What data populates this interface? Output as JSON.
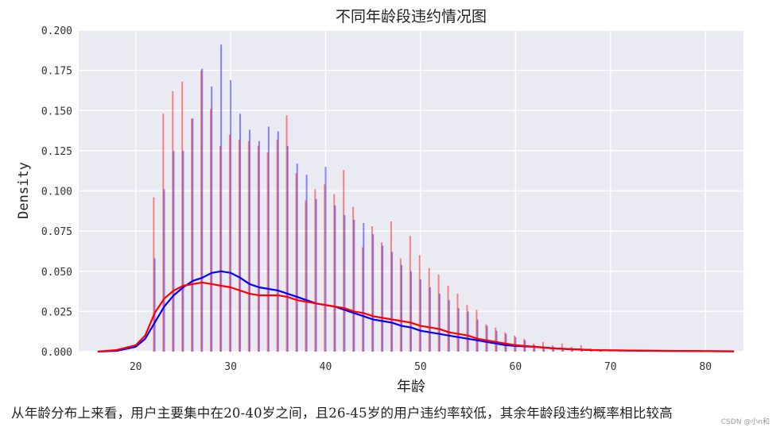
{
  "chart_data": {
    "type": "histogram_kde",
    "title": "不同年龄段违约情况图",
    "xlabel": "年龄",
    "ylabel": "Density",
    "xlim": [
      14,
      84
    ],
    "ylim": [
      0,
      0.2
    ],
    "xticks": [
      20,
      30,
      40,
      50,
      60,
      70,
      80
    ],
    "yticks": [
      0.0,
      0.025,
      0.05,
      0.075,
      0.1,
      0.125,
      0.15,
      0.175,
      0.2
    ],
    "ytick_labels": [
      "0.000",
      "0.025",
      "0.050",
      "0.075",
      "0.100",
      "0.125",
      "0.150",
      "0.175",
      "0.200"
    ],
    "grid": true,
    "series": [
      {
        "name": "blue",
        "color": "#0000ff",
        "hist_x": [
          22,
          23,
          24,
          25,
          26,
          27,
          28,
          29,
          30,
          31,
          32,
          33,
          34,
          35,
          36,
          37,
          38,
          39,
          40,
          41,
          42,
          43,
          44,
          45,
          46,
          47,
          48,
          49,
          50,
          51,
          52,
          53,
          54,
          55,
          56,
          57,
          58,
          59,
          60,
          61,
          62,
          63,
          64,
          65,
          66,
          67,
          68,
          69,
          70,
          71,
          72
        ],
        "hist_y": [
          0.058,
          0.101,
          0.125,
          0.125,
          0.145,
          0.176,
          0.165,
          0.191,
          0.169,
          0.148,
          0.138,
          0.131,
          0.14,
          0.137,
          0.128,
          0.117,
          0.11,
          0.095,
          0.115,
          0.091,
          0.085,
          0.082,
          0.08,
          0.073,
          0.066,
          0.062,
          0.054,
          0.05,
          0.045,
          0.04,
          0.036,
          0.032,
          0.027,
          0.025,
          0.02,
          0.016,
          0.013,
          0.011,
          0.009,
          0.007,
          0.004,
          0.003,
          0.003,
          0.002,
          0.002,
          0.001,
          0.001,
          0.001,
          0.001,
          0.001,
          0.001
        ],
        "kde_x": [
          16,
          18,
          20,
          21,
          22,
          23,
          24,
          25,
          26,
          27,
          28,
          29,
          30,
          31,
          32,
          33,
          34,
          35,
          36,
          37,
          38,
          39,
          40,
          41,
          42,
          43,
          44,
          45,
          46,
          47,
          48,
          49,
          50,
          51,
          52,
          53,
          54,
          55,
          56,
          57,
          58,
          59,
          60,
          62,
          64,
          66,
          68,
          70,
          75,
          80,
          83
        ],
        "kde_y": [
          0.0,
          0.0005,
          0.003,
          0.008,
          0.018,
          0.028,
          0.035,
          0.04,
          0.044,
          0.046,
          0.049,
          0.05,
          0.049,
          0.046,
          0.042,
          0.04,
          0.039,
          0.038,
          0.036,
          0.034,
          0.032,
          0.03,
          0.029,
          0.028,
          0.026,
          0.024,
          0.022,
          0.02,
          0.019,
          0.018,
          0.016,
          0.015,
          0.013,
          0.012,
          0.011,
          0.01,
          0.009,
          0.008,
          0.007,
          0.006,
          0.005,
          0.004,
          0.0035,
          0.003,
          0.002,
          0.0015,
          0.001,
          0.0008,
          0.0005,
          0.0003,
          0.0002
        ]
      },
      {
        "name": "red",
        "color": "#ff0000",
        "hist_x": [
          21.9,
          22.9,
          23.9,
          24.9,
          25.9,
          26.9,
          27.9,
          28.9,
          29.9,
          30.9,
          31.9,
          32.9,
          33.9,
          34.9,
          35.9,
          36.9,
          37.9,
          38.9,
          39.9,
          40.9,
          41.9,
          42.9,
          43.9,
          44.9,
          45.9,
          46.9,
          47.9,
          48.9,
          49.9,
          50.9,
          51.9,
          52.9,
          53.9,
          54.9,
          55.9,
          56.9,
          57.9,
          58.9,
          59.9,
          60.9,
          61.9,
          62.9,
          63.9,
          64.9,
          65.9,
          66.9,
          67.9,
          68.9
        ],
        "hist_y": [
          0.096,
          0.148,
          0.162,
          0.168,
          0.145,
          0.175,
          0.151,
          0.128,
          0.135,
          0.132,
          0.131,
          0.128,
          0.124,
          0.132,
          0.147,
          0.111,
          0.094,
          0.101,
          0.104,
          0.098,
          0.113,
          0.09,
          0.065,
          0.078,
          0.068,
          0.081,
          0.058,
          0.072,
          0.06,
          0.052,
          0.048,
          0.041,
          0.036,
          0.029,
          0.026,
          0.017,
          0.015,
          0.012,
          0.01,
          0.008,
          0.005,
          0.006,
          0.004,
          0.005,
          0.003,
          0.004,
          0.002,
          0.001
        ],
        "kde_x": [
          16,
          18,
          20,
          21,
          22,
          23,
          24,
          25,
          26,
          27,
          28,
          29,
          30,
          31,
          32,
          33,
          34,
          35,
          36,
          37,
          38,
          39,
          40,
          41,
          42,
          43,
          44,
          45,
          46,
          47,
          48,
          49,
          50,
          51,
          52,
          53,
          54,
          55,
          56,
          57,
          58,
          59,
          60,
          62,
          64,
          66,
          68,
          70,
          75,
          80,
          83
        ],
        "kde_y": [
          0.0,
          0.001,
          0.004,
          0.01,
          0.024,
          0.033,
          0.038,
          0.041,
          0.042,
          0.043,
          0.042,
          0.041,
          0.04,
          0.038,
          0.036,
          0.035,
          0.035,
          0.035,
          0.034,
          0.032,
          0.031,
          0.03,
          0.029,
          0.028,
          0.027,
          0.025,
          0.024,
          0.022,
          0.021,
          0.02,
          0.019,
          0.018,
          0.016,
          0.015,
          0.014,
          0.012,
          0.011,
          0.01,
          0.008,
          0.007,
          0.006,
          0.005,
          0.004,
          0.003,
          0.002,
          0.0015,
          0.001,
          0.0008,
          0.0005,
          0.0003,
          0.0002
        ]
      }
    ]
  },
  "caption": "从年龄分布上来看，用户主要集中在20-40岁之间，且26-45岁的用户违约率较低，其余年龄段违约概率相比较高",
  "watermark": "CSDN @小n和"
}
